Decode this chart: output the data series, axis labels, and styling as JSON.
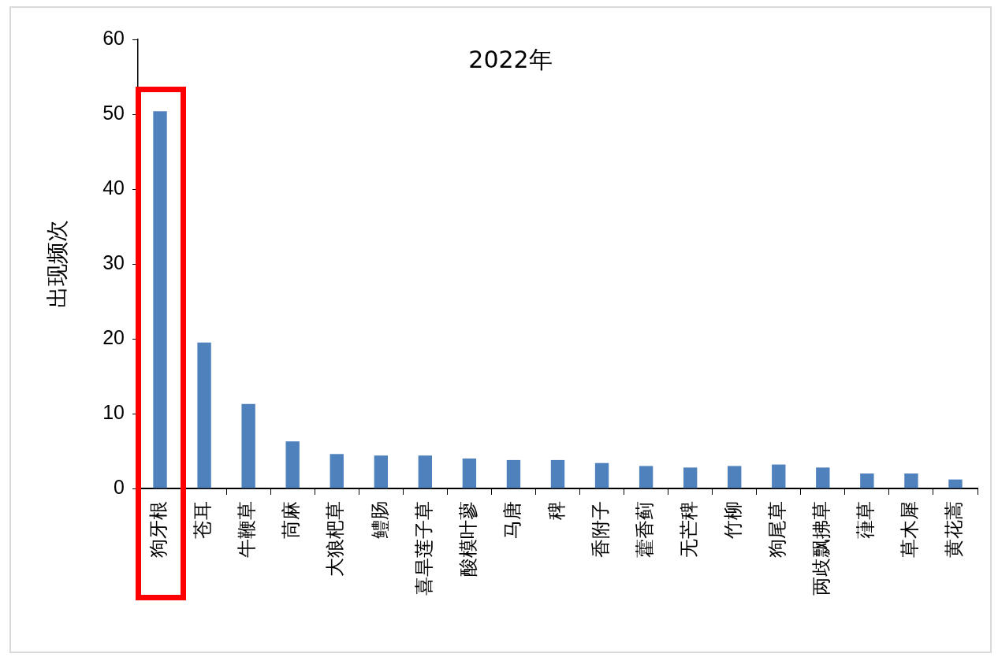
{
  "chart_data": {
    "type": "bar",
    "title": "2022年",
    "ylabel": "出现频次",
    "categories": [
      "狗牙根",
      "苍耳",
      "牛鞭草",
      "苘麻",
      "大狼杷草",
      "鳢肠",
      "喜旱莲子草",
      "酸模叶蓼",
      "马唐",
      "稗",
      "香附子",
      "藿香蓟",
      "无芒稗",
      "竹柳",
      "狗尾草",
      "两歧飘拂草",
      "葎草",
      "草木犀",
      "黄花蒿"
    ],
    "values": [
      50.4,
      19.5,
      11.3,
      6.3,
      4.6,
      4.4,
      4.4,
      4.0,
      3.8,
      3.8,
      3.4,
      3.0,
      2.8,
      3.0,
      3.2,
      2.8,
      2.0,
      2.0,
      1.2
    ],
    "color": "#4f81bd",
    "ylim": [
      0,
      60
    ],
    "yticks": [
      0,
      10,
      20,
      30,
      40,
      50,
      60
    ]
  }
}
